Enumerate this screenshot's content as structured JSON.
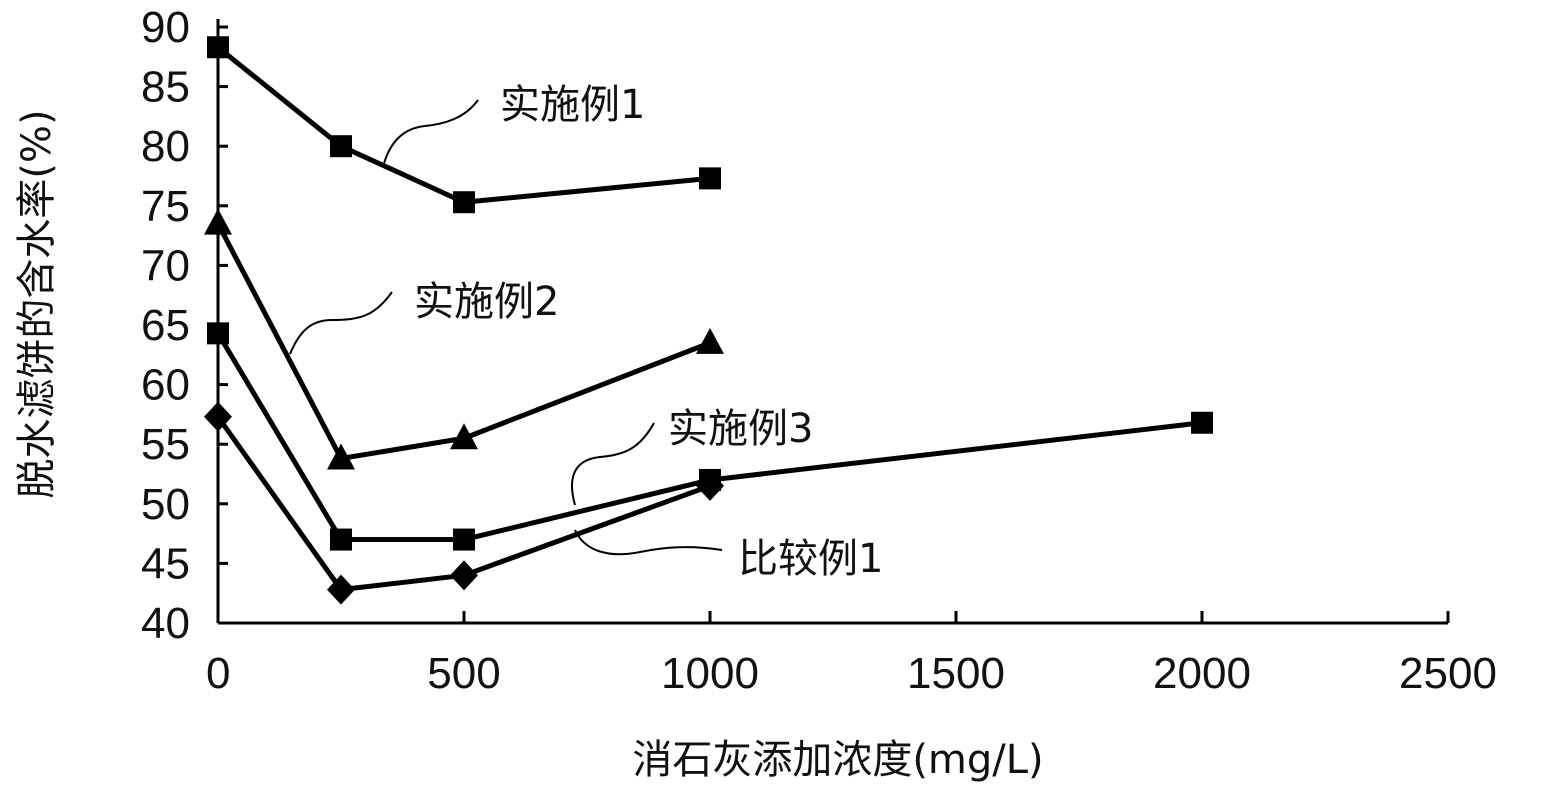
{
  "chart_data": {
    "type": "line",
    "xlabel": "消石灰添加浓度(mg/L)",
    "ylabel": "脱水滤饼的含水率(%)",
    "xlim": [
      0,
      2500
    ],
    "ylim": [
      40,
      90
    ],
    "x_ticks": [
      0,
      500,
      1000,
      1500,
      2000,
      2500
    ],
    "x_tick_labels": [
      "0",
      "500",
      "1000",
      "1500",
      "2000",
      "2500"
    ],
    "y_ticks": [
      40,
      45,
      50,
      55,
      60,
      65,
      70,
      75,
      80,
      85,
      90
    ],
    "y_tick_labels": [
      "40",
      "45",
      "50",
      "55",
      "60",
      "65",
      "70",
      "75",
      "80",
      "85",
      "90"
    ],
    "grid": false,
    "series": [
      {
        "name": "实施例1",
        "marker": "square",
        "x": [
          0,
          250,
          500,
          1000
        ],
        "y": [
          88.3,
          80.0,
          75.3,
          77.3
        ]
      },
      {
        "name": "实施例2",
        "marker": "triangle",
        "x": [
          0,
          250,
          500,
          1000
        ],
        "y": [
          73.5,
          53.8,
          55.5,
          63.5
        ]
      },
      {
        "name": "实施例3",
        "marker": "square",
        "x": [
          0,
          250,
          500,
          1000,
          2000
        ],
        "y": [
          64.3,
          47.0,
          47.0,
          52.0,
          56.8
        ]
      },
      {
        "name": "比较例1",
        "marker": "diamond",
        "x": [
          0,
          250,
          500,
          1000
        ],
        "y": [
          57.3,
          42.8,
          44.0,
          51.5
        ]
      }
    ]
  }
}
